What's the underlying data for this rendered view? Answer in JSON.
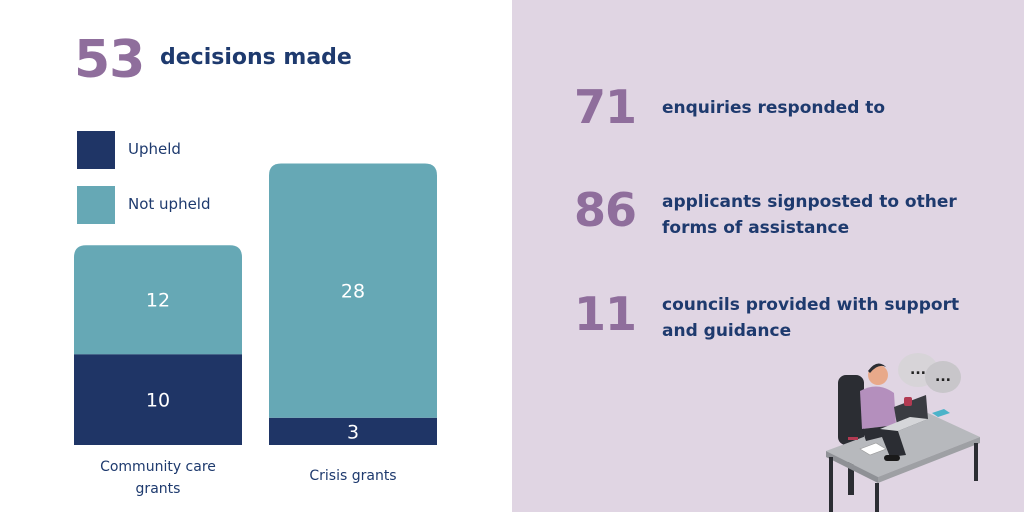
{
  "headline": {
    "number": "53",
    "text": "decisions made"
  },
  "legend": [
    {
      "label": "Upheld",
      "color": "#1f3566"
    },
    {
      "label": "Not upheld",
      "color": "#66a8b5"
    }
  ],
  "chart_data": {
    "type": "bar",
    "stacked": true,
    "categories": [
      "Community care grants",
      "Crisis grants"
    ],
    "category_lines": [
      [
        "Community care",
        "grants"
      ],
      [
        "Crisis grants"
      ]
    ],
    "series": [
      {
        "name": "Upheld",
        "values": [
          10,
          3
        ],
        "color": "#1f3566"
      },
      {
        "name": "Not upheld",
        "values": [
          12,
          28
        ],
        "color": "#66a8b5"
      }
    ],
    "legend_position": "top-left",
    "grid": false
  },
  "stats": [
    {
      "number": "71",
      "text": "enquiries responded to"
    },
    {
      "number": "86",
      "text": "applicants signposted to other forms of assistance"
    },
    {
      "number": "11",
      "text": "councils provided with support and guidance"
    }
  ],
  "illustration": {
    "icon": "person-at-laptop-illustration"
  },
  "colors": {
    "accent": "#8f6e9c",
    "text": "#1e3a6e",
    "panel": "#e0d5e3"
  }
}
